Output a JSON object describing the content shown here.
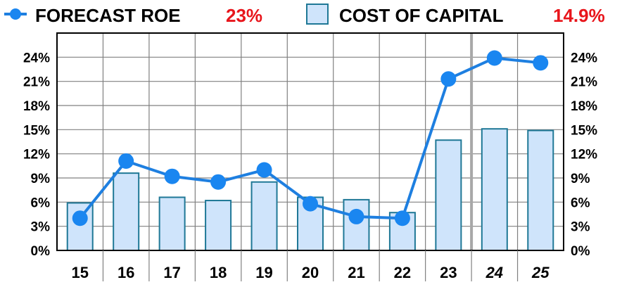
{
  "legend": {
    "roe_label": "FORECAST ROE",
    "roe_value": "23%",
    "coc_label": "COST OF CAPITAL",
    "coc_value": "14.9%"
  },
  "colors": {
    "line": "#1e7fe0",
    "marker": "#1a86f0",
    "bar_fill": "#cfe4fb",
    "bar_stroke": "#1f7896",
    "highlight": "#e8151b",
    "grid": "#808080"
  },
  "chart_data": {
    "type": "bar",
    "categories": [
      "15",
      "16",
      "17",
      "18",
      "19",
      "20",
      "21",
      "22",
      "23",
      "24",
      "25"
    ],
    "italic_categories": [
      "24",
      "25"
    ],
    "series": [
      {
        "name": "FORECAST ROE",
        "type": "line",
        "values": [
          4.0,
          11.1,
          9.2,
          8.5,
          10.0,
          5.8,
          4.2,
          4.0,
          21.3,
          23.9,
          23.3
        ]
      },
      {
        "name": "COST OF CAPITAL",
        "type": "bar",
        "values": [
          5.9,
          9.6,
          6.6,
          6.2,
          8.5,
          6.6,
          6.3,
          4.7,
          13.7,
          15.1,
          14.9
        ]
      }
    ],
    "ylim": [
      0,
      27
    ],
    "yticks": [
      0,
      3,
      6,
      9,
      12,
      15,
      18,
      21,
      24
    ],
    "ytick_labels": [
      "0%",
      "3%",
      "6%",
      "9%",
      "12%",
      "15%",
      "18%",
      "21%",
      "24%"
    ],
    "grid": true,
    "legend_position": "top",
    "forecast_divider_after": "23"
  }
}
